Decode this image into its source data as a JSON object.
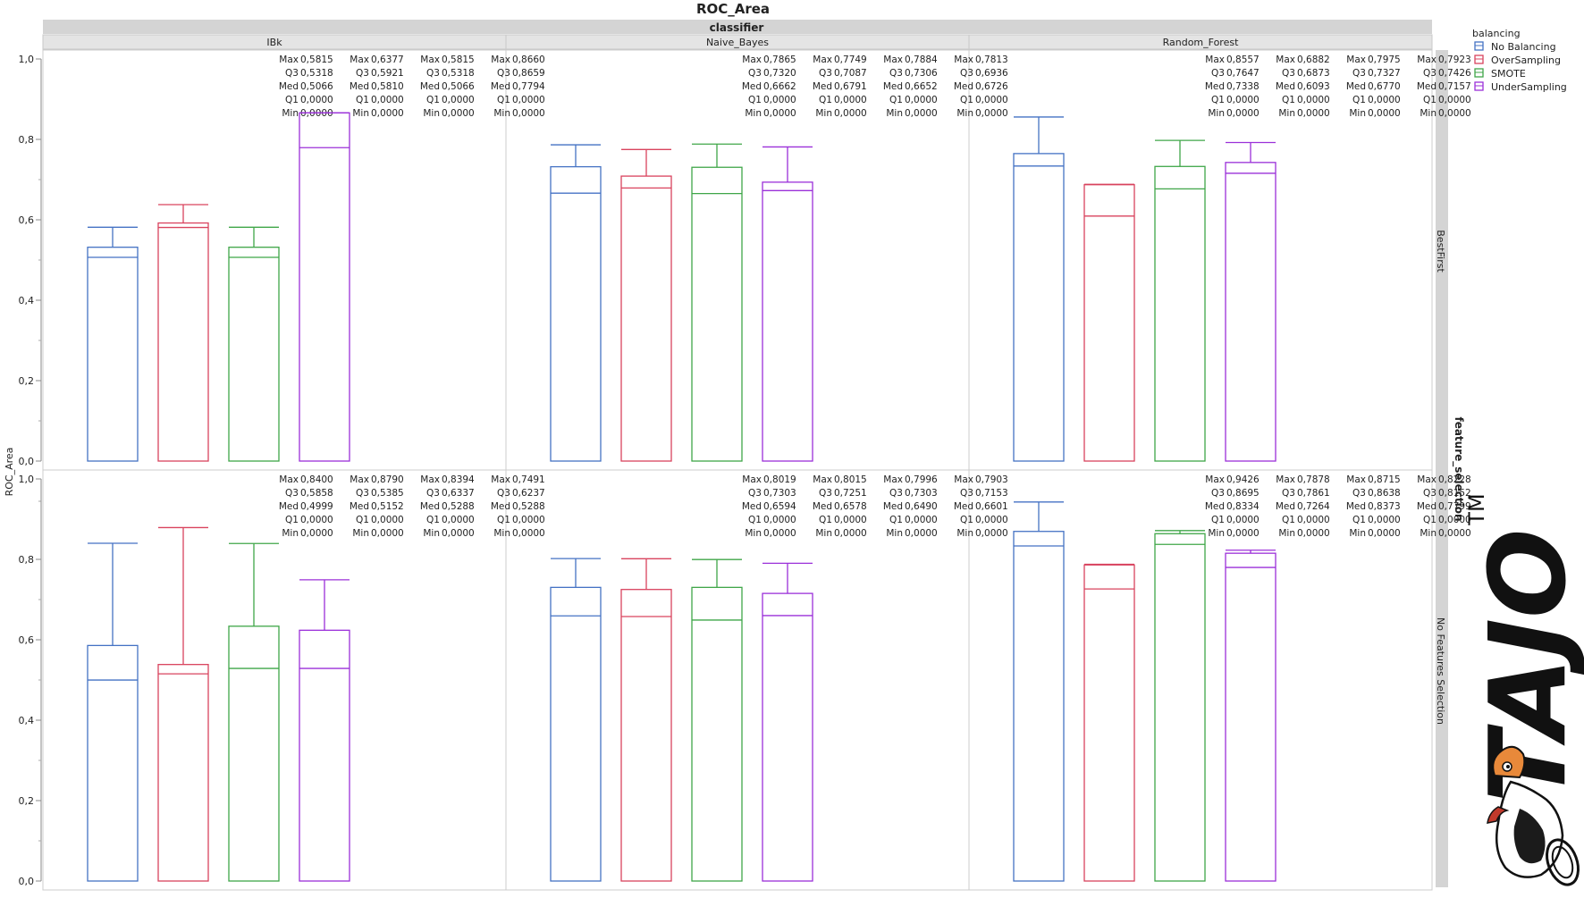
{
  "chart_data": {
    "type": "box",
    "title": "ROC_Area",
    "ylabel": "ROC_Area",
    "ylim": [
      0,
      1
    ],
    "yticks": [
      "0,0",
      "0,2",
      "0,4",
      "0,6",
      "0,8",
      "1,0"
    ],
    "col_group_label": "classifier",
    "row_group_label": "feature_selection",
    "columns": [
      "IBk",
      "Naive_Bayes",
      "Random_Forest"
    ],
    "rows": [
      "BestFirst",
      "No Features Selection"
    ],
    "legend": {
      "title": "balancing",
      "position": "top-right",
      "items": [
        {
          "name": "No Balancing",
          "color": "#4472c4"
        },
        {
          "name": "OverSampling",
          "color": "#d9435e"
        },
        {
          "name": "SMOTE",
          "color": "#3fa648"
        },
        {
          "name": "UnderSampling",
          "color": "#9b30d9"
        }
      ]
    },
    "stat_labels": {
      "max": "Max",
      "q3": "Q3",
      "med": "Med",
      "q1": "Q1",
      "min": "Min"
    },
    "panels": [
      {
        "row": "BestFirst",
        "col": "IBk",
        "boxes": [
          {
            "series": "No Balancing",
            "max": "0,5815",
            "q3": "0,5318",
            "med": "0,5066",
            "q1": "0,0000",
            "min": "0,0000"
          },
          {
            "series": "OverSampling",
            "max": "0,6377",
            "q3": "0,5921",
            "med": "0,5810",
            "q1": "0,0000",
            "min": "0,0000"
          },
          {
            "series": "SMOTE",
            "max": "0,5815",
            "q3": "0,5318",
            "med": "0,5066",
            "q1": "0,0000",
            "min": "0,0000"
          },
          {
            "series": "UnderSampling",
            "max": "0,8660",
            "q3": "0,8659",
            "med": "0,7794",
            "q1": "0,0000",
            "min": "0,0000"
          }
        ]
      },
      {
        "row": "BestFirst",
        "col": "Naive_Bayes",
        "boxes": [
          {
            "series": "No Balancing",
            "max": "0,7865",
            "q3": "0,7320",
            "med": "0,6662",
            "q1": "0,0000",
            "min": "0,0000"
          },
          {
            "series": "OverSampling",
            "max": "0,7749",
            "q3": "0,7087",
            "med": "0,6791",
            "q1": "0,0000",
            "min": "0,0000"
          },
          {
            "series": "SMOTE",
            "max": "0,7884",
            "q3": "0,7306",
            "med": "0,6652",
            "q1": "0,0000",
            "min": "0,0000"
          },
          {
            "series": "UnderSampling",
            "max": "0,7813",
            "q3": "0,6936",
            "med": "0,6726",
            "q1": "0,0000",
            "min": "0,0000"
          }
        ]
      },
      {
        "row": "BestFirst",
        "col": "Random_Forest",
        "boxes": [
          {
            "series": "No Balancing",
            "max": "0,8557",
            "q3": "0,7647",
            "med": "0,7338",
            "q1": "0,0000",
            "min": "0,0000"
          },
          {
            "series": "OverSampling",
            "max": "0,6882",
            "q3": "0,6873",
            "med": "0,6093",
            "q1": "0,0000",
            "min": "0,0000"
          },
          {
            "series": "SMOTE",
            "max": "0,7975",
            "q3": "0,7327",
            "med": "0,6770",
            "q1": "0,0000",
            "min": "0,0000"
          },
          {
            "series": "UnderSampling",
            "max": "0,7923",
            "q3": "0,7426",
            "med": "0,7157",
            "q1": "0,0000",
            "min": "0,0000"
          }
        ]
      },
      {
        "row": "No Features Selection",
        "col": "IBk",
        "boxes": [
          {
            "series": "No Balancing",
            "max": "0,8400",
            "q3": "0,5858",
            "med": "0,4999",
            "q1": "0,0000",
            "min": "0,0000"
          },
          {
            "series": "OverSampling",
            "max": "0,8790",
            "q3": "0,5385",
            "med": "0,5152",
            "q1": "0,0000",
            "min": "0,0000"
          },
          {
            "series": "SMOTE",
            "max": "0,8394",
            "q3": "0,6337",
            "med": "0,5288",
            "q1": "0,0000",
            "min": "0,0000"
          },
          {
            "series": "UnderSampling",
            "max": "0,7491",
            "q3": "0,6237",
            "med": "0,5288",
            "q1": "0,0000",
            "min": "0,0000"
          }
        ]
      },
      {
        "row": "No Features Selection",
        "col": "Naive_Bayes",
        "boxes": [
          {
            "series": "No Balancing",
            "max": "0,8019",
            "q3": "0,7303",
            "med": "0,6594",
            "q1": "0,0000",
            "min": "0,0000"
          },
          {
            "series": "OverSampling",
            "max": "0,8015",
            "q3": "0,7251",
            "med": "0,6578",
            "q1": "0,0000",
            "min": "0,0000"
          },
          {
            "series": "SMOTE",
            "max": "0,7996",
            "q3": "0,7303",
            "med": "0,6490",
            "q1": "0,0000",
            "min": "0,0000"
          },
          {
            "series": "UnderSampling",
            "max": "0,7903",
            "q3": "0,7153",
            "med": "0,6601",
            "q1": "0,0000",
            "min": "0,0000"
          }
        ]
      },
      {
        "row": "No Features Selection",
        "col": "Random_Forest",
        "boxes": [
          {
            "series": "No Balancing",
            "max": "0,9426",
            "q3": "0,8695",
            "med": "0,8334",
            "q1": "0,0000",
            "min": "0,0000"
          },
          {
            "series": "OverSampling",
            "max": "0,7878",
            "q3": "0,7861",
            "med": "0,7264",
            "q1": "0,0000",
            "min": "0,0000"
          },
          {
            "series": "SMOTE",
            "max": "0,8715",
            "q3": "0,8638",
            "med": "0,8373",
            "q1": "0,0000",
            "min": "0,0000"
          },
          {
            "series": "UnderSampling",
            "max": "0,8228",
            "q3": "0,8152",
            "med": "0,7799",
            "q1": "0,0000",
            "min": "0,0000"
          }
        ]
      }
    ]
  },
  "watermark": {
    "brand": "TAJO",
    "mark": "TM"
  }
}
